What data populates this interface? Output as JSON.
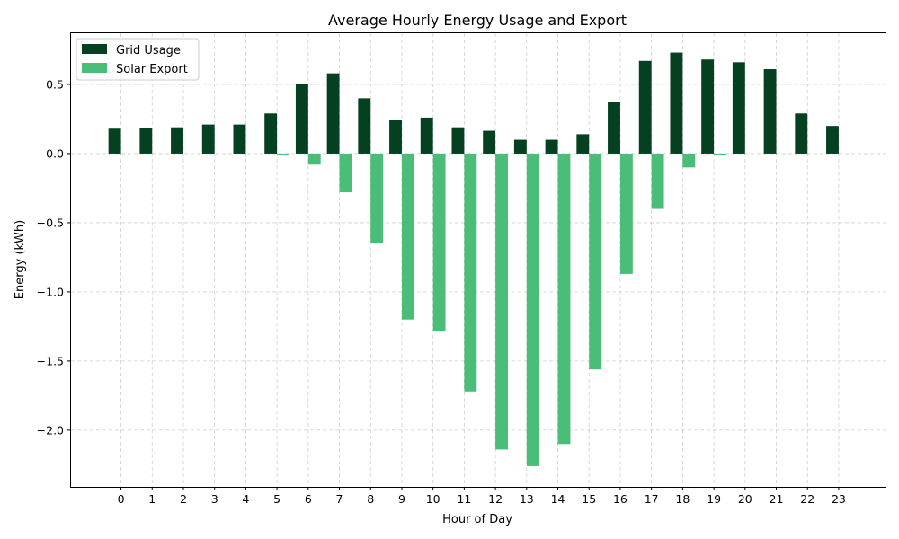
{
  "chart_data": {
    "type": "bar",
    "title": "Average Hourly Energy Usage and Export",
    "xlabel": "Hour of Day",
    "ylabel": "Energy (kWh)",
    "categories": [
      "0",
      "1",
      "2",
      "3",
      "4",
      "5",
      "6",
      "7",
      "8",
      "9",
      "10",
      "11",
      "12",
      "13",
      "14",
      "15",
      "16",
      "17",
      "18",
      "19",
      "20",
      "21",
      "22",
      "23"
    ],
    "series": [
      {
        "name": "Grid Usage",
        "color": "#054020",
        "values": [
          0.18,
          0.185,
          0.19,
          0.21,
          0.21,
          0.29,
          0.5,
          0.58,
          0.4,
          0.24,
          0.26,
          0.19,
          0.165,
          0.1,
          0.1,
          0.14,
          0.37,
          0.67,
          0.73,
          0.68,
          0.66,
          0.61,
          0.29,
          0.2
        ]
      },
      {
        "name": "Solar Export",
        "color": "#4abe78",
        "values": [
          0.0,
          0.0,
          0.0,
          0.0,
          0.0,
          -0.005,
          -0.08,
          -0.28,
          -0.65,
          -1.2,
          -1.28,
          -1.72,
          -2.14,
          -2.26,
          -2.1,
          -1.56,
          -0.87,
          -0.4,
          -0.1,
          -0.005,
          0.0,
          0.0,
          0.0,
          0.0
        ]
      }
    ],
    "yticks": [
      -2.0,
      -1.5,
      -1.0,
      -0.5,
      0.0,
      0.5
    ],
    "ytick_labels": [
      "−2.0",
      "−1.5",
      "−1.0",
      "−0.5",
      "0.0",
      "0.5"
    ],
    "ylim": [
      -2.41,
      0.87
    ],
    "xlim": [
      -1.6,
      24.5
    ],
    "grid": true,
    "legend_position": "top-left"
  }
}
